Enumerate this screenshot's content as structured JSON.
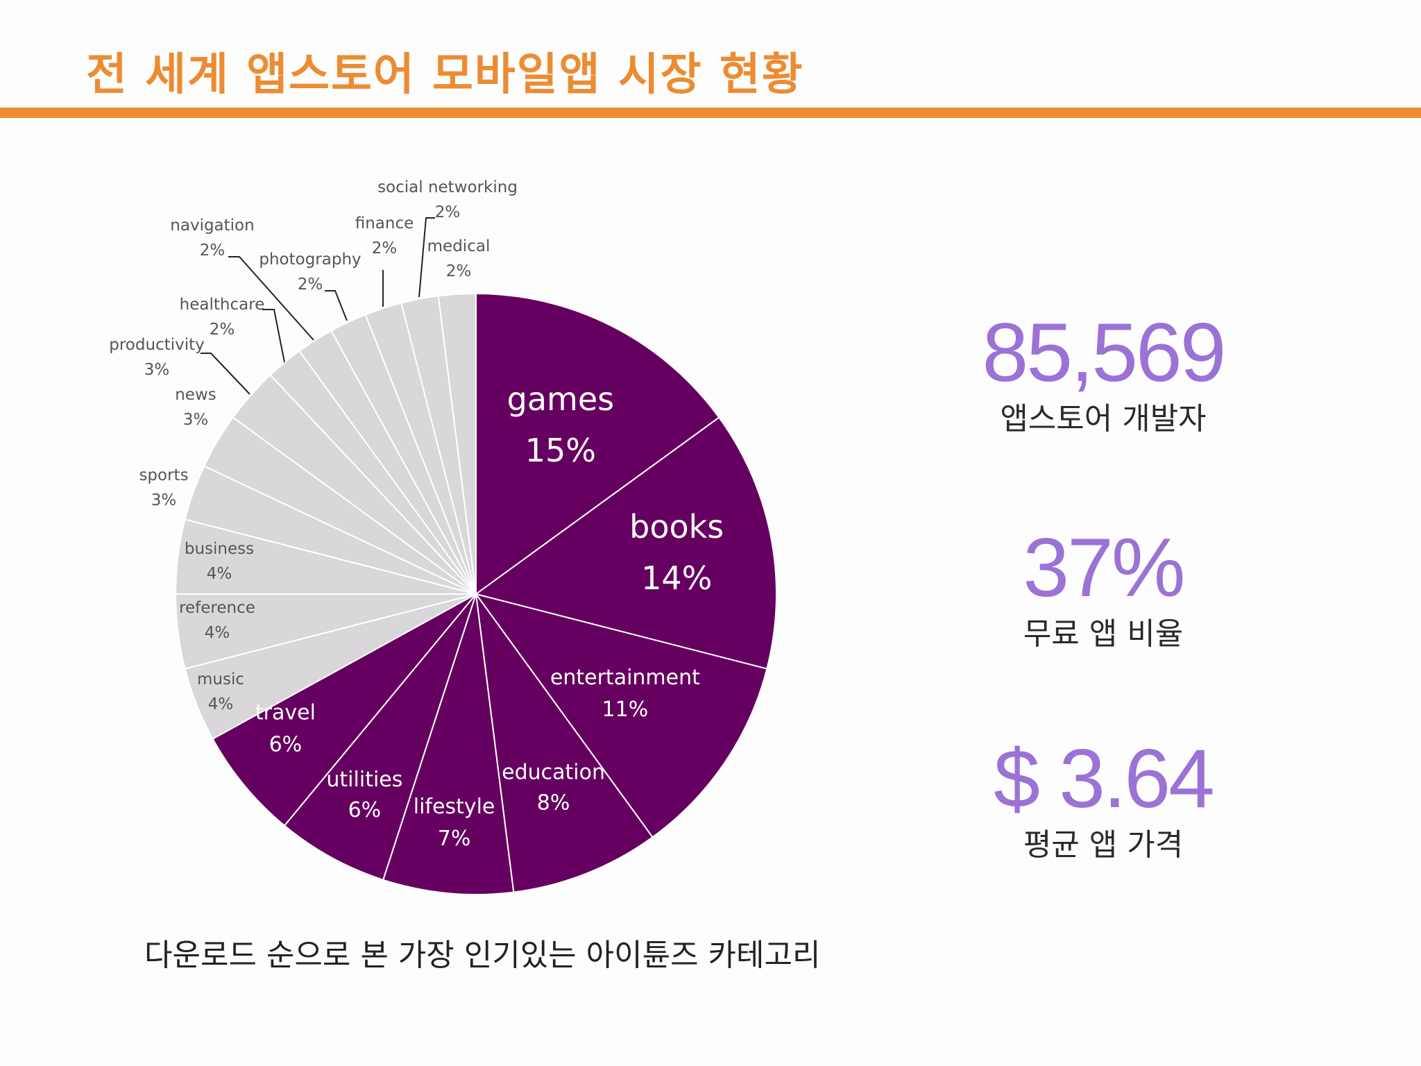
{
  "title": "전 세계 앱스토어 모바일앱 시장 현황",
  "caption": "다운로드 순으로 본 가장 인기있는 아이튠즈 카테고리",
  "colors": {
    "accent": "#ec8c32",
    "highlight": "#660060",
    "muted": "#d9d7da",
    "stat": "#9b72d6"
  },
  "stats": [
    {
      "value": "85,569",
      "label": "앱스토어 개발자"
    },
    {
      "value": "37%",
      "label": "무료 앱 비율"
    },
    {
      "value": "$ 3.64",
      "label": "평균 앱 가격"
    }
  ],
  "chart_data": {
    "type": "pie",
    "title": "",
    "slices": [
      {
        "label": "games",
        "value": 15,
        "pct": "15%",
        "highlight": true
      },
      {
        "label": "books",
        "value": 14,
        "pct": "14%",
        "highlight": true
      },
      {
        "label": "entertainment",
        "value": 11,
        "pct": "11%",
        "highlight": true
      },
      {
        "label": "education",
        "value": 8,
        "pct": "8%",
        "highlight": true
      },
      {
        "label": "lifestyle",
        "value": 7,
        "pct": "7%",
        "highlight": true
      },
      {
        "label": "utilities",
        "value": 6,
        "pct": "6%",
        "highlight": true
      },
      {
        "label": "travel",
        "value": 6,
        "pct": "6%",
        "highlight": true
      },
      {
        "label": "music",
        "value": 4,
        "pct": "4%",
        "highlight": false
      },
      {
        "label": "reference",
        "value": 4,
        "pct": "4%",
        "highlight": false
      },
      {
        "label": "business",
        "value": 4,
        "pct": "4%",
        "highlight": false
      },
      {
        "label": "sports",
        "value": 3,
        "pct": "3%",
        "highlight": false
      },
      {
        "label": "news",
        "value": 3,
        "pct": "3%",
        "highlight": false
      },
      {
        "label": "productivity",
        "value": 3,
        "pct": "3%",
        "highlight": false
      },
      {
        "label": "healthcare",
        "value": 2,
        "pct": "2%",
        "highlight": false
      },
      {
        "label": "navigation",
        "value": 2,
        "pct": "2%",
        "highlight": false
      },
      {
        "label": "photography",
        "value": 2,
        "pct": "2%",
        "highlight": false
      },
      {
        "label": "finance",
        "value": 2,
        "pct": "2%",
        "highlight": false
      },
      {
        "label": "social networking",
        "value": 2,
        "pct": "2%",
        "highlight": false
      },
      {
        "label": "medical",
        "value": 2,
        "pct": "2%",
        "highlight": false
      }
    ]
  }
}
